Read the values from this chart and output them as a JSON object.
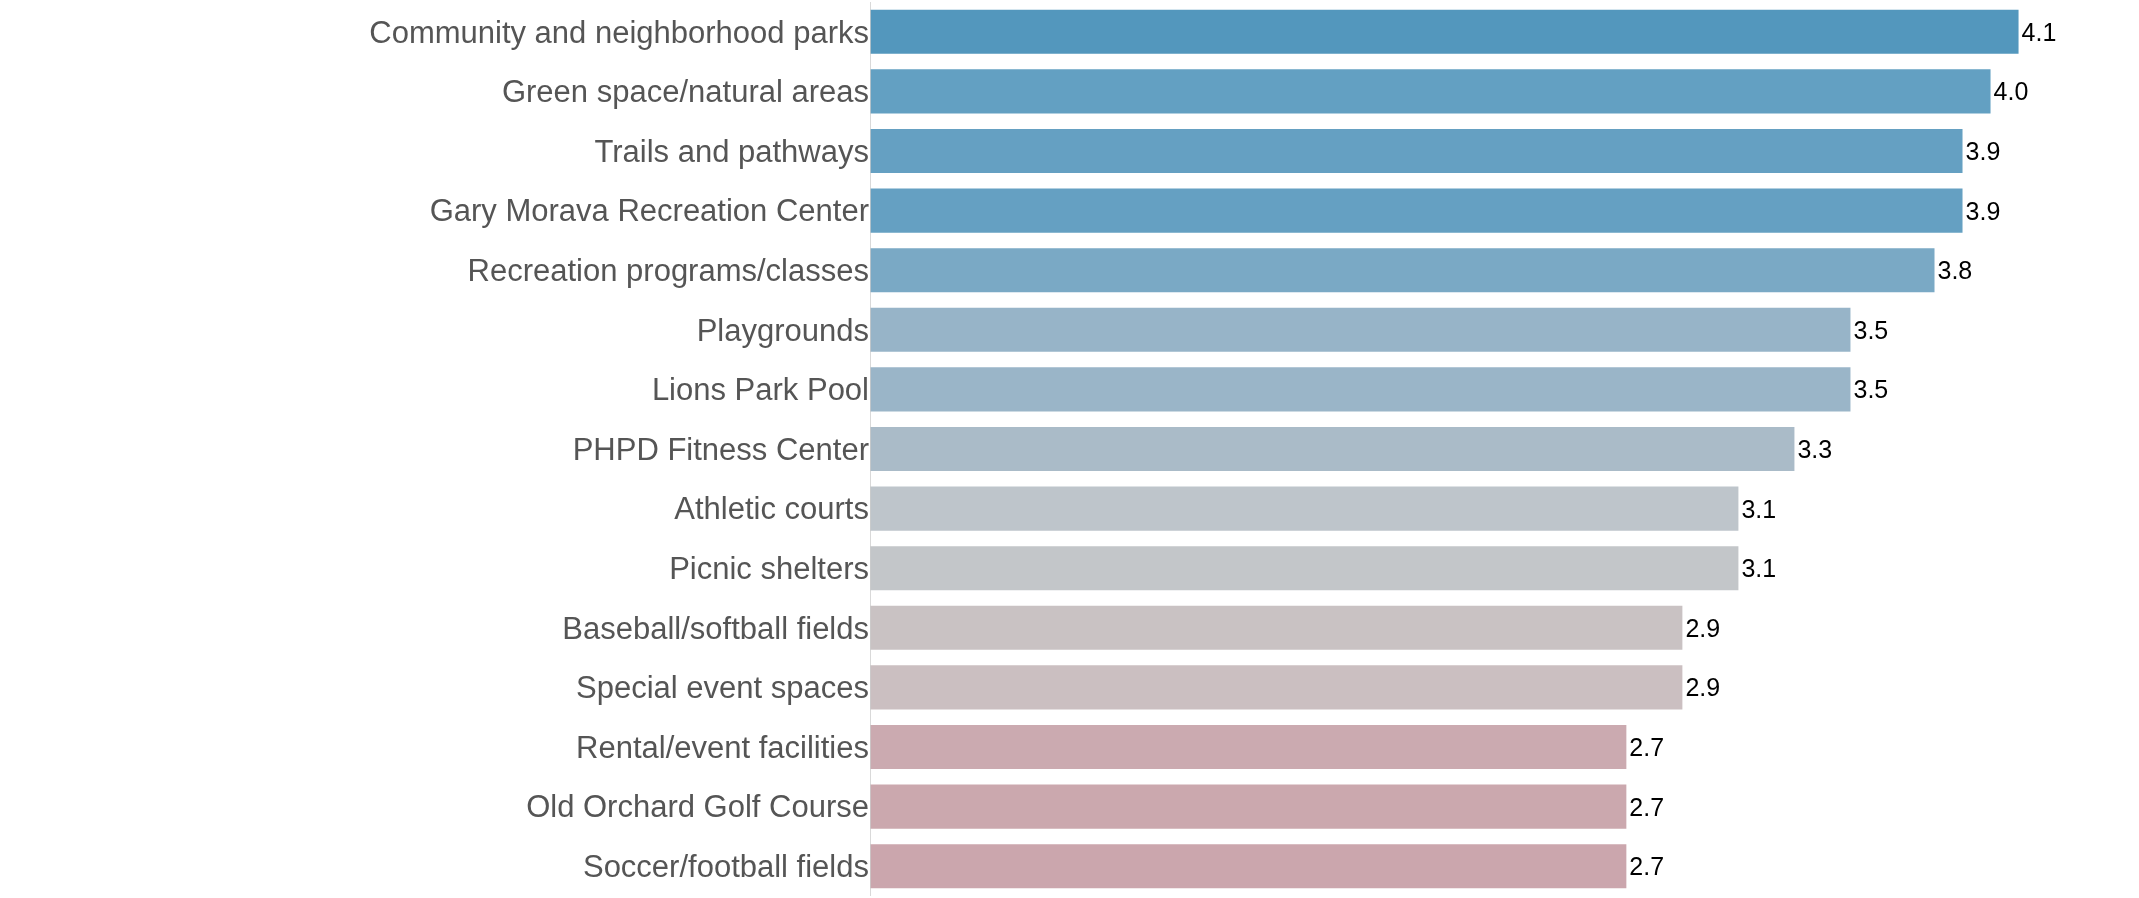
{
  "chart_data": {
    "type": "bar",
    "orientation": "horizontal",
    "value_labels": [
      "4.1",
      "4.0",
      "3.9",
      "3.9",
      "3.8",
      "3.5",
      "3.5",
      "3.3",
      "3.1",
      "3.1",
      "2.9",
      "2.9",
      "2.7",
      "2.7",
      "2.7"
    ],
    "categories": [
      "Community and neighborhood parks",
      "Green space/natural areas",
      "Trails and pathways",
      "Gary Morava Recreation Center",
      "Recreation programs/classes",
      "Playgrounds",
      "Lions Park Pool",
      "PHPD Fitness Center",
      "Athletic courts",
      "Picnic shelters",
      "Baseball/softball fields",
      "Special event spaces",
      "Rental/event facilities",
      "Old Orchard Golf Course",
      "Soccer/football fields"
    ],
    "values": [
      4.1,
      4.0,
      3.9,
      3.9,
      3.8,
      3.5,
      3.5,
      3.3,
      3.1,
      3.1,
      2.9,
      2.9,
      2.7,
      2.7,
      2.7
    ],
    "colors": [
      "#5397bd",
      "#63a0c2",
      "#65a0c2",
      "#65a0c2",
      "#7aa9c5",
      "#97b4c8",
      "#9ab5c8",
      "#aabbc8",
      "#bec5cb",
      "#c3c6c9",
      "#c9c2c3",
      "#cbbfc1",
      "#cbaab0",
      "#cba8ae",
      "#cba6ad"
    ]
  }
}
